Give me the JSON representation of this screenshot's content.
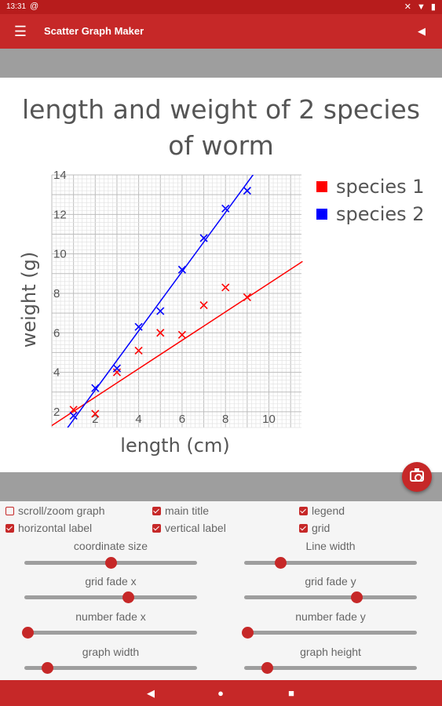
{
  "status_bar": {
    "time": "13:31",
    "left_icon": "at-sign-icon",
    "right_icons": "✕ ▼ ▮"
  },
  "app_bar": {
    "title": "Scatter Graph Maker",
    "menu_icon": "hamburger-icon",
    "back_icon": "back-triangle-icon"
  },
  "colors": {
    "primary": "#c62828",
    "dark": "#b71c1c",
    "series1": "#ff0000",
    "series2": "#0000ff"
  },
  "chart_data": {
    "type": "scatter",
    "title_line1": "length and weight of 2 species",
    "title_line2": "of worm",
    "xlabel": "length (cm)",
    "ylabel": "weight (g)",
    "xlim": [
      0,
      11.5
    ],
    "ylim": [
      1.2,
      14
    ],
    "x_ticks": [
      2,
      4,
      6,
      8,
      10
    ],
    "y_ticks": [
      2,
      4,
      6,
      8,
      10,
      12,
      14
    ],
    "grid": true,
    "legend_position": "top-right",
    "series": [
      {
        "name": "species 1",
        "color": "#ff0000",
        "points": [
          [
            1,
            2.1
          ],
          [
            2,
            1.9
          ],
          [
            3,
            4.0
          ],
          [
            4,
            5.1
          ],
          [
            5,
            6.0
          ],
          [
            6,
            5.9
          ],
          [
            7,
            7.4
          ],
          [
            8,
            8.3
          ],
          [
            9,
            7.8
          ]
        ],
        "trendline": {
          "slope": 0.72,
          "intercept": 1.3
        }
      },
      {
        "name": "species 2",
        "color": "#0000ff",
        "points": [
          [
            1,
            1.8
          ],
          [
            2,
            3.2
          ],
          [
            3,
            4.2
          ],
          [
            4,
            6.3
          ],
          [
            5,
            7.1
          ],
          [
            6,
            9.2
          ],
          [
            7,
            10.8
          ],
          [
            8,
            12.3
          ],
          [
            9,
            13.2
          ]
        ],
        "trendline": {
          "slope": 1.5,
          "intercept": 0.1
        }
      }
    ]
  },
  "camera_button": {
    "icon": "camera-icon"
  },
  "checkboxes": [
    {
      "label": "scroll/zoom graph",
      "checked": false
    },
    {
      "label": "main title",
      "checked": true
    },
    {
      "label": "legend",
      "checked": true
    },
    {
      "label": "horizontal label",
      "checked": true
    },
    {
      "label": "vertical label",
      "checked": true
    },
    {
      "label": "grid",
      "checked": true
    }
  ],
  "sliders": [
    {
      "label": "coordinate size",
      "value": 0.5
    },
    {
      "label": "Line width",
      "value": 0.21
    },
    {
      "label": "grid fade x",
      "value": 0.6
    },
    {
      "label": "grid fade y",
      "value": 0.65
    },
    {
      "label": "number fade x",
      "value": 0.02
    },
    {
      "label": "number fade y",
      "value": 0.02
    },
    {
      "label": "graph width",
      "value": 0.13
    },
    {
      "label": "graph height",
      "value": 0.13
    }
  ],
  "nav_bar": {
    "back": "◀",
    "home": "●",
    "recents": "■"
  }
}
